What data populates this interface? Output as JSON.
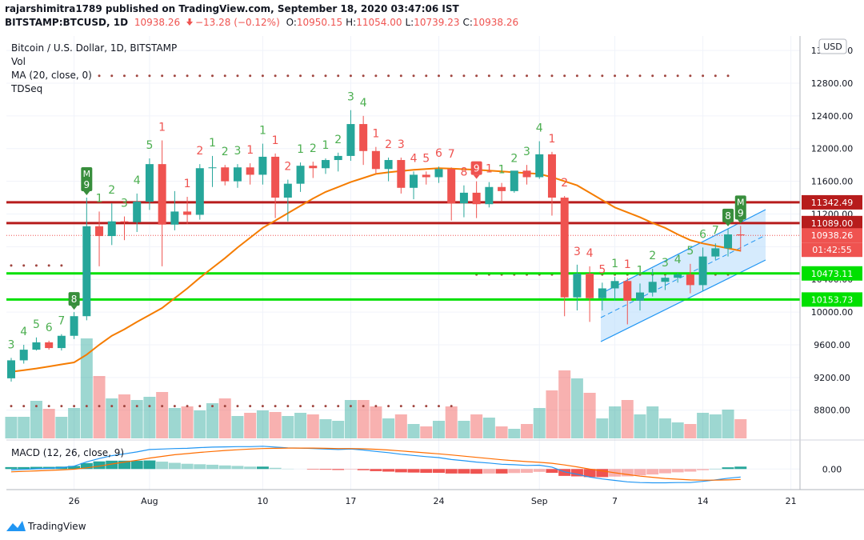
{
  "header": {
    "publisher": "rajarshimitra1789 published on TradingView.com, September 18, 2020 03:47:06 IST",
    "symbol": "BITSTAMP:BTCUSD, 1D",
    "last": "10938.26",
    "change": "−13.28 (−0.12%)",
    "ohlc": [
      {
        "label": "O:",
        "value": "10950.15"
      },
      {
        "label": "H:",
        "value": "11054.00"
      },
      {
        "label": "L:",
        "value": "10739.23"
      },
      {
        "label": "C:",
        "value": "10938.26"
      }
    ]
  },
  "chart_data": {
    "type": "candlestick",
    "title": "Bitcoin / U.S. Dollar, 1D, BITSTAMP",
    "currency": "USD",
    "up_color": "#26a69a",
    "down_color": "#ef5350",
    "dates": [
      "2020-07-21",
      "2020-07-22",
      "2020-07-23",
      "2020-07-24",
      "2020-07-25",
      "2020-07-26",
      "2020-07-27",
      "2020-07-28",
      "2020-07-29",
      "2020-07-30",
      "2020-07-31",
      "2020-08-01",
      "2020-08-02",
      "2020-08-03",
      "2020-08-04",
      "2020-08-05",
      "2020-08-06",
      "2020-08-07",
      "2020-08-08",
      "2020-08-09",
      "2020-08-10",
      "2020-08-11",
      "2020-08-12",
      "2020-08-13",
      "2020-08-14",
      "2020-08-15",
      "2020-08-16",
      "2020-08-17",
      "2020-08-18",
      "2020-08-19",
      "2020-08-20",
      "2020-08-21",
      "2020-08-22",
      "2020-08-23",
      "2020-08-24",
      "2020-08-25",
      "2020-08-26",
      "2020-08-27",
      "2020-08-28",
      "2020-08-29",
      "2020-08-30",
      "2020-08-31",
      "2020-09-01",
      "2020-09-02",
      "2020-09-03",
      "2020-09-04",
      "2020-09-05",
      "2020-09-06",
      "2020-09-07",
      "2020-09-08",
      "2020-09-09",
      "2020-09-10",
      "2020-09-11",
      "2020-09-12",
      "2020-09-13",
      "2020-09-14",
      "2020-09-15",
      "2020-09-16",
      "2020-09-17"
    ],
    "open": [
      9190,
      9410,
      9540,
      9630,
      9560,
      9710,
      9950,
      11050,
      10930,
      11110,
      11100,
      11350,
      11810,
      11070,
      11230,
      11190,
      11760,
      11770,
      11600,
      11770,
      11680,
      11900,
      11400,
      11570,
      11790,
      11760,
      11860,
      11910,
      12300,
      11970,
      11750,
      11860,
      11520,
      11680,
      11650,
      11750,
      11330,
      11460,
      11320,
      11530,
      11480,
      11730,
      11650,
      11930,
      11400,
      10180,
      10470,
      10170,
      10290,
      10380,
      10140,
      10240,
      10370,
      10420,
      10460,
      10330,
      10680,
      10780,
      10950.15
    ],
    "high": [
      9440,
      9600,
      9690,
      9650,
      9730,
      10000,
      11400,
      11230,
      11330,
      11170,
      11450,
      11880,
      12100,
      11480,
      11410,
      11810,
      11910,
      11800,
      11810,
      11820,
      12060,
      11940,
      11620,
      11830,
      11840,
      11880,
      11950,
      12470,
      12400,
      12020,
      11890,
      11890,
      11720,
      11720,
      11780,
      11770,
      11550,
      11600,
      11590,
      11580,
      11720,
      11800,
      12090,
      11960,
      11420,
      10580,
      10560,
      10360,
      10430,
      10420,
      10350,
      10530,
      10440,
      10480,
      10590,
      10790,
      10840,
      11020,
      11054
    ],
    "low": [
      9150,
      9370,
      9530,
      9540,
      9530,
      9670,
      9900,
      10560,
      10820,
      10880,
      10980,
      11250,
      10560,
      11000,
      11080,
      11130,
      11530,
      11550,
      11520,
      11560,
      11560,
      11150,
      11110,
      11470,
      11640,
      11690,
      11720,
      11850,
      11800,
      11700,
      11600,
      11450,
      11380,
      11560,
      11580,
      11120,
      11160,
      11150,
      11280,
      11350,
      11460,
      11560,
      11630,
      11180,
      9950,
      10020,
      9880,
      10020,
      10140,
      9850,
      10020,
      10190,
      10270,
      10360,
      10230,
      10260,
      10640,
      10680,
      10739.23
    ],
    "close": [
      9410,
      9540,
      9630,
      9560,
      9710,
      9950,
      11050,
      10930,
      11110,
      11100,
      11350,
      11810,
      11070,
      11230,
      11190,
      11760,
      11770,
      11600,
      11770,
      11680,
      11900,
      11400,
      11570,
      11790,
      11760,
      11860,
      11910,
      12300,
      11970,
      11750,
      11860,
      11520,
      11680,
      11650,
      11750,
      11330,
      11460,
      11320,
      11530,
      11480,
      11730,
      11650,
      11930,
      11400,
      10180,
      10470,
      10170,
      10290,
      10380,
      10140,
      10240,
      10370,
      10420,
      10460,
      10330,
      10680,
      10780,
      10950,
      10938.26
    ],
    "ylim": [
      8455,
      13377
    ],
    "yticks": [
      {
        "value": 8800,
        "label": "8800.00"
      },
      {
        "value": 9200,
        "label": "9200.00"
      },
      {
        "value": 9600,
        "label": "9600.00"
      },
      {
        "value": 10000,
        "label": "10000.00"
      },
      {
        "value": 10400,
        "label": "10400.00"
      },
      {
        "value": 10800,
        "label": "10800.00"
      },
      {
        "value": 11200,
        "label": "11200.00"
      },
      {
        "value": 11600,
        "label": "11600.00"
      },
      {
        "value": 12000,
        "label": "12000.00"
      },
      {
        "value": 12400,
        "label": "12400.00"
      },
      {
        "value": 12800,
        "label": "12800.00"
      },
      {
        "value": 13200,
        "label": "13200.00"
      }
    ],
    "xticks": [
      {
        "value": "2020-07-26",
        "label": "26"
      },
      {
        "value": "2020-08-01",
        "label": "Aug"
      },
      {
        "value": "2020-08-10",
        "label": "10"
      },
      {
        "value": "2020-08-17",
        "label": "17"
      },
      {
        "value": "2020-08-24",
        "label": "24"
      },
      {
        "value": "2020-09-01",
        "label": "Sep"
      },
      {
        "value": "2020-09-07",
        "label": "7"
      },
      {
        "value": "2020-09-14",
        "label": "14"
      },
      {
        "value": "2020-09-21",
        "label": "21"
      }
    ],
    "grid": true,
    "volume": {
      "name": "Vol",
      "values": [
        27,
        27,
        47,
        37,
        27,
        38,
        125,
        78,
        50,
        55,
        48,
        52,
        58,
        38,
        40,
        35,
        44,
        50,
        28,
        32,
        35,
        33,
        28,
        32,
        30,
        24,
        22,
        48,
        48,
        40,
        25,
        30,
        18,
        15,
        22,
        40,
        22,
        30,
        26,
        15,
        12,
        18,
        38,
        60,
        85,
        75,
        57,
        25,
        40,
        48,
        30,
        40,
        25,
        20,
        18,
        32,
        30,
        36,
        24
      ]
    },
    "ma": {
      "name": "MA (20, close, 0)",
      "color": "#f57c00",
      "values": [
        9270,
        9290,
        9310,
        9335,
        9360,
        9385,
        9480,
        9600,
        9710,
        9790,
        9880,
        9965,
        10050,
        10170,
        10290,
        10420,
        10540,
        10660,
        10790,
        10910,
        11030,
        11120,
        11210,
        11300,
        11390,
        11470,
        11530,
        11590,
        11640,
        11690,
        11710,
        11725,
        11740,
        11750,
        11760,
        11755,
        11748,
        11740,
        11730,
        11720,
        11710,
        11700,
        11690,
        11650,
        11600,
        11550,
        11460,
        11370,
        11280,
        11220,
        11160,
        11090,
        11030,
        10950,
        10880,
        10840,
        10810,
        10780,
        10750
      ]
    },
    "tdseq": {
      "name": "TDSeq",
      "labels": [
        {
          "label": "3",
          "color": "#4caf50"
        },
        {
          "label": "4",
          "color": "#4caf50"
        },
        {
          "label": "5",
          "color": "#4caf50"
        },
        {
          "label": "6",
          "color": "#4caf50"
        },
        {
          "label": "7",
          "color": "#4caf50"
        },
        {
          "label": "8",
          "color": "#388e3c",
          "boxed": true
        },
        {
          "label": "9",
          "color": "#388e3c",
          "boxed": true,
          "mark": "M"
        },
        {
          "label": "1",
          "color": "#4caf50"
        },
        {
          "label": "2",
          "color": "#4caf50"
        },
        {
          "label": "3",
          "color": "#4caf50"
        },
        {
          "label": "4",
          "color": "#4caf50"
        },
        {
          "label": "5",
          "color": "#4caf50"
        },
        {
          "label": "1",
          "color": "#ef5350"
        },
        null,
        {
          "label": "1",
          "color": "#ef5350"
        },
        {
          "label": "2",
          "color": "#ef5350"
        },
        {
          "label": "1",
          "color": "#4caf50"
        },
        {
          "label": "2",
          "color": "#4caf50"
        },
        {
          "label": "3",
          "color": "#4caf50"
        },
        {
          "label": "1",
          "color": "#ef5350"
        },
        {
          "label": "1",
          "color": "#4caf50"
        },
        {
          "label": "1",
          "color": "#ef5350"
        },
        {
          "label": "2",
          "color": "#ef5350"
        },
        {
          "label": "1",
          "color": "#4caf50"
        },
        {
          "label": "2",
          "color": "#4caf50"
        },
        {
          "label": "1",
          "color": "#4caf50"
        },
        {
          "label": "2",
          "color": "#4caf50"
        },
        {
          "label": "3",
          "color": "#4caf50"
        },
        {
          "label": "4",
          "color": "#4caf50"
        },
        {
          "label": "1",
          "color": "#ef5350"
        },
        {
          "label": "2",
          "color": "#ef5350"
        },
        {
          "label": "3",
          "color": "#ef5350"
        },
        {
          "label": "4",
          "color": "#ef5350"
        },
        {
          "label": "5",
          "color": "#ef5350"
        },
        {
          "label": "6",
          "color": "#ef5350"
        },
        {
          "label": "7",
          "color": "#ef5350"
        },
        {
          "label": "8",
          "color": "#ef5350"
        },
        {
          "label": "9",
          "color": "#ef5350",
          "boxed": true
        },
        {
          "label": "1",
          "color": "#ef5350"
        },
        {
          "label": "1",
          "color": "#4caf50"
        },
        {
          "label": "2",
          "color": "#4caf50"
        },
        {
          "label": "3",
          "color": "#4caf50"
        },
        {
          "label": "4",
          "color": "#4caf50"
        },
        {
          "label": "1",
          "color": "#ef5350"
        },
        {
          "label": "2",
          "color": "#ef5350"
        },
        {
          "label": "3",
          "color": "#ef5350"
        },
        {
          "label": "4",
          "color": "#ef5350"
        },
        {
          "label": "5",
          "color": "#ef5350"
        },
        {
          "label": "1",
          "color": "#4caf50"
        },
        {
          "label": "1",
          "color": "#ef5350"
        },
        {
          "label": "1",
          "color": "#4caf50"
        },
        {
          "label": "2",
          "color": "#4caf50"
        },
        {
          "label": "3",
          "color": "#4caf50"
        },
        {
          "label": "4",
          "color": "#4caf50"
        },
        {
          "label": "5",
          "color": "#4caf50"
        },
        {
          "label": "6",
          "color": "#4caf50"
        },
        {
          "label": "7",
          "color": "#4caf50"
        },
        {
          "label": "8",
          "color": "#388e3c",
          "boxed": true
        },
        {
          "label": "9",
          "color": "#388e3c",
          "boxed": true,
          "mark": "M"
        }
      ],
      "levels": [
        {
          "value": 12890,
          "from": "2020-07-28",
          "to": "2020-09-16"
        },
        {
          "value": 10570,
          "from": "2020-07-21",
          "to": "2020-07-26"
        },
        {
          "value": 10460,
          "from": "2020-08-27",
          "to": "2020-09-17"
        },
        {
          "value": 8850,
          "from": "2020-07-21",
          "to": "2020-08-26"
        }
      ],
      "level_color": "#a0453f"
    },
    "lines": [
      {
        "value": 11342.49,
        "color": "#b71c1c"
      },
      {
        "value": 11089,
        "label": "11089.00",
        "color": "#b71c1c"
      },
      {
        "value": 10473.11,
        "color": "#00e000"
      },
      {
        "value": 10153.73,
        "color": "#00e000"
      }
    ],
    "last_price": {
      "value": 10938.26,
      "countdown": "01:42:55",
      "color": "#ef5350"
    },
    "macd": {
      "name": "MACD (12, 26, close, 9)",
      "macd_color": "#2196f3",
      "signal_color": "#ff6d00",
      "ylim": [
        -400,
        560
      ],
      "yticks": [
        {
          "value": 0,
          "label": "0.00"
        }
      ],
      "macd": [
        -20,
        -10,
        5,
        15,
        30,
        60,
        150,
        220,
        280,
        320,
        360,
        410,
        420,
        430,
        435,
        450,
        460,
        465,
        470,
        470,
        480,
        460,
        445,
        440,
        430,
        420,
        410,
        420,
        400,
        370,
        345,
        310,
        285,
        260,
        240,
        200,
        175,
        145,
        125,
        100,
        90,
        75,
        80,
        40,
        -60,
        -110,
        -170,
        -210,
        -240,
        -270,
        -285,
        -290,
        -290,
        -285,
        -285,
        -260,
        -230,
        -195,
        -170
      ],
      "signal": [
        -60,
        -50,
        -40,
        -30,
        -20,
        -5,
        25,
        60,
        105,
        145,
        185,
        230,
        265,
        300,
        325,
        350,
        370,
        390,
        405,
        420,
        430,
        435,
        440,
        440,
        440,
        435,
        430,
        430,
        425,
        415,
        400,
        380,
        360,
        340,
        320,
        295,
        270,
        245,
        220,
        195,
        175,
        155,
        140,
        120,
        85,
        45,
        0,
        -40,
        -80,
        -115,
        -150,
        -175,
        -200,
        -215,
        -230,
        -235,
        -235,
        -230,
        -220
      ],
      "histogram": [
        40,
        40,
        45,
        45,
        50,
        65,
        125,
        160,
        175,
        175,
        175,
        180,
        155,
        130,
        110,
        100,
        90,
        75,
        65,
        50,
        50,
        25,
        5,
        0,
        -10,
        -15,
        -20,
        -10,
        -25,
        -45,
        -55,
        -70,
        -75,
        -80,
        -80,
        -95,
        -95,
        -100,
        -95,
        -95,
        -85,
        -80,
        -60,
        -80,
        -145,
        -155,
        -170,
        -170,
        -160,
        -155,
        -135,
        -115,
        -90,
        -70,
        -55,
        -25,
        5,
        35,
        50
      ]
    }
  },
  "footer": {
    "brand": "TradingView"
  }
}
